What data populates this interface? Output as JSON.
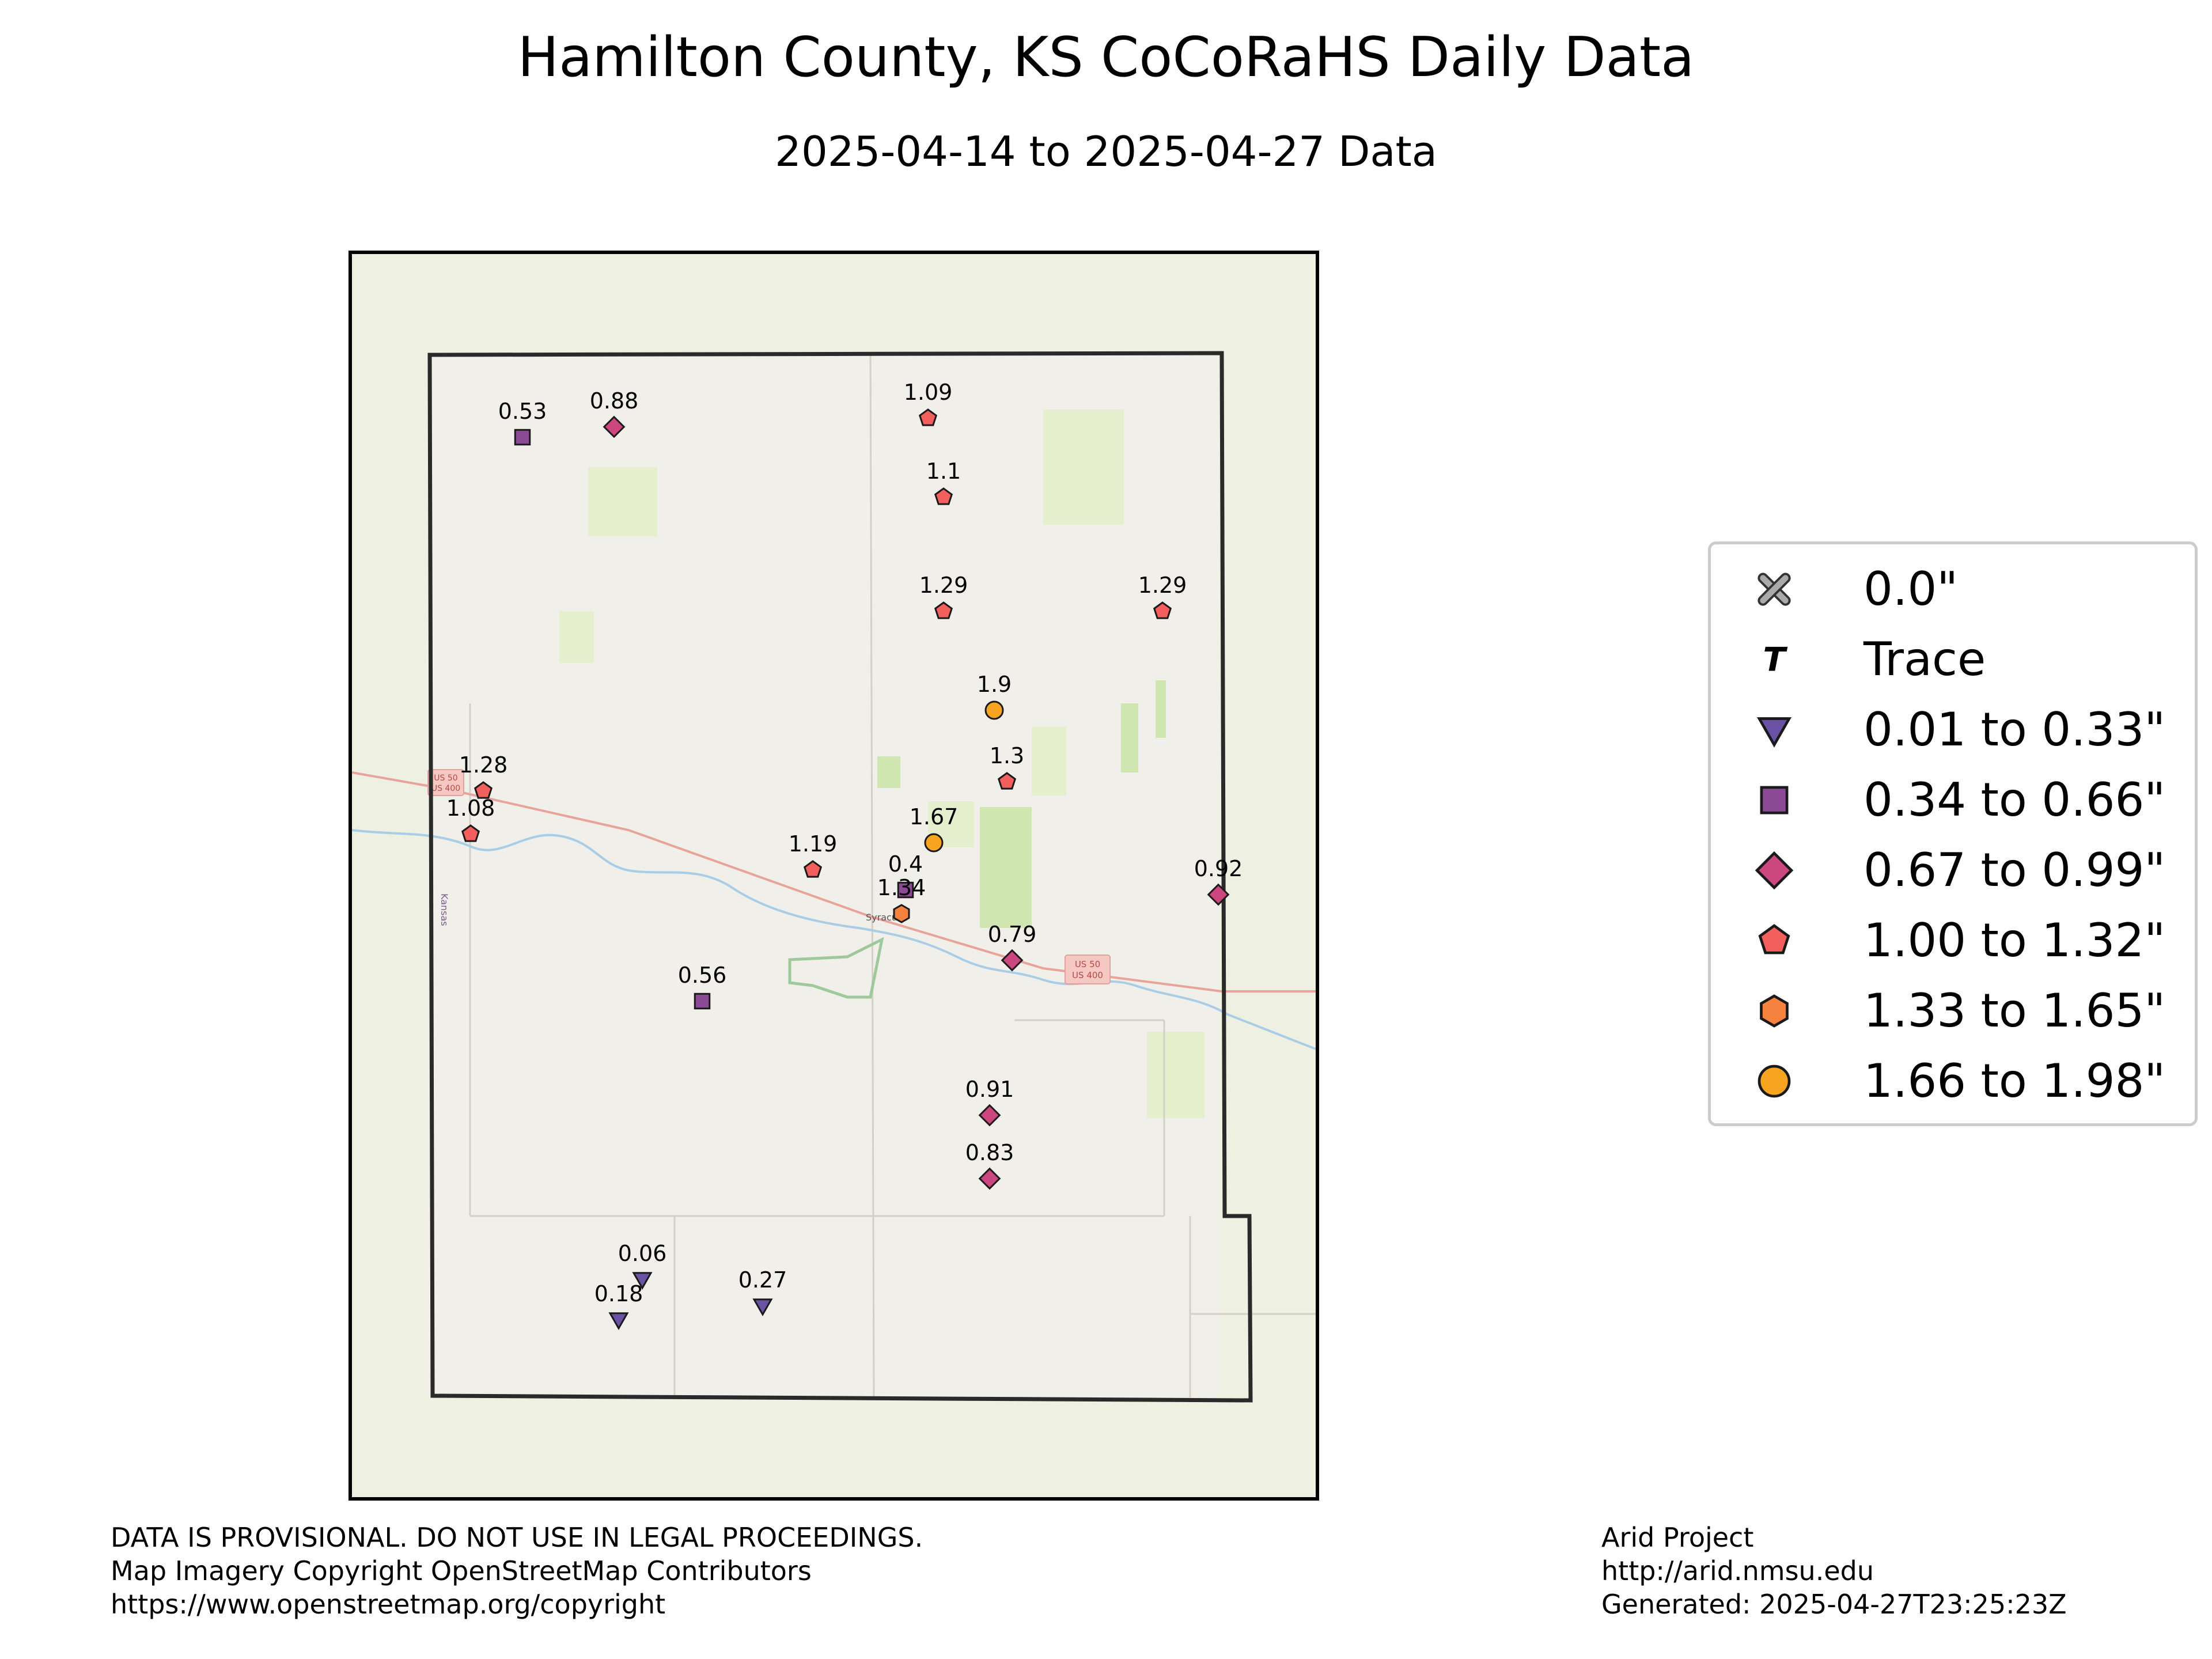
{
  "title": "Hamilton County, KS CoCoRaHS Daily Data",
  "subtitle": "2025-04-14 to 2025-04-27 Data",
  "map_labels": {
    "road_shield_west_1": "US 50",
    "road_shield_west_2": "US 400",
    "road_shield_east_1": "US 50",
    "road_shield_east_2": "US 400",
    "town": "Syracuse",
    "state": "Kansas"
  },
  "legend": [
    {
      "label": "0.0\"",
      "symbol": "x",
      "color": "#aaaaaa"
    },
    {
      "label": "Trace",
      "symbol": "T",
      "color": "#000000"
    },
    {
      "label": "0.01 to 0.33\"",
      "symbol": "triangle-down",
      "color": "#6a51a3"
    },
    {
      "label": "0.34 to 0.66\"",
      "symbol": "square",
      "color": "#8c4a96"
    },
    {
      "label": "0.67 to 0.99\"",
      "symbol": "diamond",
      "color": "#cc4680"
    },
    {
      "label": "1.00 to 1.32\"",
      "symbol": "pentagon",
      "color": "#f25f5c"
    },
    {
      "label": "1.33 to 1.65\"",
      "symbol": "hexagon",
      "color": "#f5823f"
    },
    {
      "label": "1.66 to 1.98\"",
      "symbol": "circle",
      "color": "#f7a521"
    }
  ],
  "stations": [
    {
      "value": "0.53",
      "symbol": "square"
    },
    {
      "value": "0.88",
      "symbol": "diamond"
    },
    {
      "value": "1.09",
      "symbol": "pentagon"
    },
    {
      "value": "1.1",
      "symbol": "pentagon"
    },
    {
      "value": "1.29",
      "symbol": "pentagon"
    },
    {
      "value": "1.29",
      "symbol": "pentagon"
    },
    {
      "value": "1.9",
      "symbol": "circle"
    },
    {
      "value": "1.3",
      "symbol": "pentagon"
    },
    {
      "value": "1.28",
      "symbol": "pentagon"
    },
    {
      "value": "1.08",
      "symbol": "pentagon"
    },
    {
      "value": "1.67",
      "symbol": "circle"
    },
    {
      "value": "1.19",
      "symbol": "pentagon"
    },
    {
      "value": "0.4",
      "symbol": "square"
    },
    {
      "value": "1.34",
      "symbol": "hexagon"
    },
    {
      "value": "0.92",
      "symbol": "diamond"
    },
    {
      "value": "0.79",
      "symbol": "diamond"
    },
    {
      "value": "0.56",
      "symbol": "square"
    },
    {
      "value": "0.91",
      "symbol": "diamond"
    },
    {
      "value": "0.83",
      "symbol": "diamond"
    },
    {
      "value": "0.06",
      "symbol": "triangle-down"
    },
    {
      "value": "0.18",
      "symbol": "triangle-down"
    },
    {
      "value": "0.27",
      "symbol": "triangle-down"
    }
  ],
  "footer_left": [
    "DATA IS PROVISIONAL. DO NOT USE IN LEGAL PROCEEDINGS.",
    "Map Imagery Copyright OpenStreetMap Contributors",
    "https://www.openstreetmap.org/copyright"
  ],
  "footer_right": [
    "Arid Project",
    "http://arid.nmsu.edu",
    "Generated: 2025-04-27T23:25:23Z"
  ]
}
